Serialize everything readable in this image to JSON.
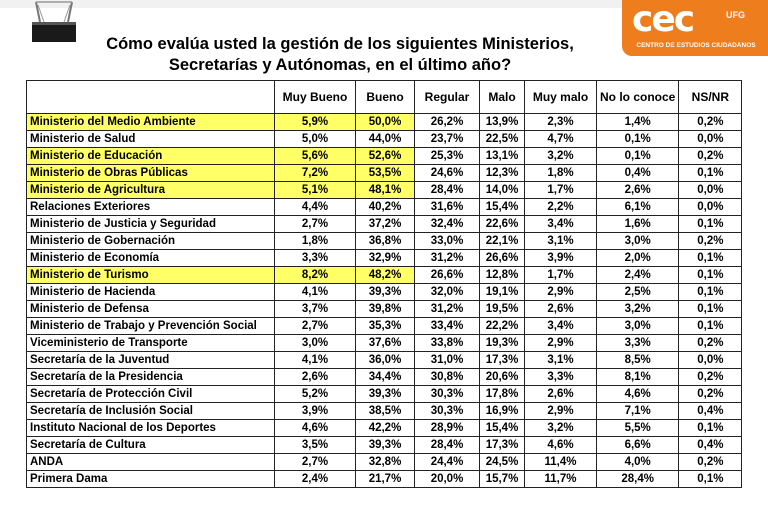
{
  "title_line1": "Cómo evalúa usted la gestión de los siguientes Ministerios,",
  "title_line2": "Secretarías y Autónomas, en el último año?",
  "logo": {
    "mark": "cec",
    "ufg": "UFG",
    "subtitle": "CENTRO DE ESTUDIOS CIUDADANOS",
    "color": "#ee7d1e"
  },
  "highlight_color": "#ffff66",
  "columns": [
    "",
    "Muy Bueno",
    "Bueno",
    "Regular",
    "Malo",
    "Muy malo",
    "No lo conoce",
    "NS/NR"
  ],
  "rows": [
    {
      "name": "Ministerio del Medio Ambiente",
      "values": [
        "5,9%",
        "50,0%",
        "26,2%",
        "13,9%",
        "2,3%",
        "1,4%",
        "0,2%"
      ],
      "highlight": true
    },
    {
      "name": "Ministerio de Salud",
      "values": [
        "5,0%",
        "44,0%",
        "23,7%",
        "22,5%",
        "4,7%",
        "0,1%",
        "0,0%"
      ],
      "highlight": false
    },
    {
      "name": "Ministerio de Educación",
      "values": [
        "5,6%",
        "52,6%",
        "25,3%",
        "13,1%",
        "3,2%",
        "0,1%",
        "0,2%"
      ],
      "highlight": true
    },
    {
      "name": "Ministerio de Obras Públicas",
      "values": [
        "7,2%",
        "53,5%",
        "24,6%",
        "12,3%",
        "1,8%",
        "0,4%",
        "0,1%"
      ],
      "highlight": true
    },
    {
      "name": "Ministerio de Agricultura",
      "values": [
        "5,1%",
        "48,1%",
        "28,4%",
        "14,0%",
        "1,7%",
        "2,6%",
        "0,0%"
      ],
      "highlight": true
    },
    {
      "name": "Relaciones Exteriores",
      "values": [
        "4,4%",
        "40,2%",
        "31,6%",
        "15,4%",
        "2,2%",
        "6,1%",
        "0,0%"
      ],
      "highlight": false
    },
    {
      "name": "Ministerio de Justicia y Seguridad",
      "values": [
        "2,7%",
        "37,2%",
        "32,4%",
        "22,6%",
        "3,4%",
        "1,6%",
        "0,1%"
      ],
      "highlight": false
    },
    {
      "name": "Ministerio de Gobernación",
      "values": [
        "1,8%",
        "36,8%",
        "33,0%",
        "22,1%",
        "3,1%",
        "3,0%",
        "0,2%"
      ],
      "highlight": false
    },
    {
      "name": "Ministerio de Economía",
      "values": [
        "3,3%",
        "32,9%",
        "31,2%",
        "26,6%",
        "3,9%",
        "2,0%",
        "0,1%"
      ],
      "highlight": false
    },
    {
      "name": "Ministerio de Turismo",
      "values": [
        "8,2%",
        "48,2%",
        "26,6%",
        "12,8%",
        "1,7%",
        "2,4%",
        "0,1%"
      ],
      "highlight": true
    },
    {
      "name": "Ministerio de Hacienda",
      "values": [
        "4,1%",
        "39,3%",
        "32,0%",
        "19,1%",
        "2,9%",
        "2,5%",
        "0,1%"
      ],
      "highlight": false
    },
    {
      "name": "Ministerio de Defensa",
      "values": [
        "3,7%",
        "39,8%",
        "31,2%",
        "19,5%",
        "2,6%",
        "3,2%",
        "0,1%"
      ],
      "highlight": false
    },
    {
      "name": "Ministerio de Trabajo y Prevención Social",
      "values": [
        "2,7%",
        "35,3%",
        "33,4%",
        "22,2%",
        "3,4%",
        "3,0%",
        "0,1%"
      ],
      "highlight": false
    },
    {
      "name": "Viceministerio de Transporte",
      "values": [
        "3,0%",
        "37,6%",
        "33,8%",
        "19,3%",
        "2,9%",
        "3,3%",
        "0,2%"
      ],
      "highlight": false
    },
    {
      "name": "Secretaría de la Juventud",
      "values": [
        "4,1%",
        "36,0%",
        "31,0%",
        "17,3%",
        "3,1%",
        "8,5%",
        "0,0%"
      ],
      "highlight": false
    },
    {
      "name": "Secretaría de la Presidencia",
      "values": [
        "2,6%",
        "34,4%",
        "30,8%",
        "20,6%",
        "3,3%",
        "8,1%",
        "0,2%"
      ],
      "highlight": false
    },
    {
      "name": "Secretaría de Protección Civil",
      "values": [
        "5,2%",
        "39,3%",
        "30,3%",
        "17,8%",
        "2,6%",
        "4,6%",
        "0,2%"
      ],
      "highlight": false
    },
    {
      "name": "Secretaría de Inclusión Social",
      "values": [
        "3,9%",
        "38,5%",
        "30,3%",
        "16,9%",
        "2,9%",
        "7,1%",
        "0,4%"
      ],
      "highlight": false
    },
    {
      "name": "Instituto Nacional de los Deportes",
      "values": [
        "4,6%",
        "42,2%",
        "28,9%",
        "15,4%",
        "3,2%",
        "5,5%",
        "0,1%"
      ],
      "highlight": false
    },
    {
      "name": "Secretaría de Cultura",
      "values": [
        "3,5%",
        "39,3%",
        "28,4%",
        "17,3%",
        "4,6%",
        "6,6%",
        "0,4%"
      ],
      "highlight": false
    },
    {
      "name": "ANDA",
      "values": [
        "2,7%",
        "32,8%",
        "24,4%",
        "24,5%",
        "11,4%",
        "4,0%",
        "0,2%"
      ],
      "highlight": false
    },
    {
      "name": "Primera Dama",
      "values": [
        "2,4%",
        "21,7%",
        "20,0%",
        "15,7%",
        "11,7%",
        "28,4%",
        "0,1%"
      ],
      "highlight": false
    }
  ]
}
